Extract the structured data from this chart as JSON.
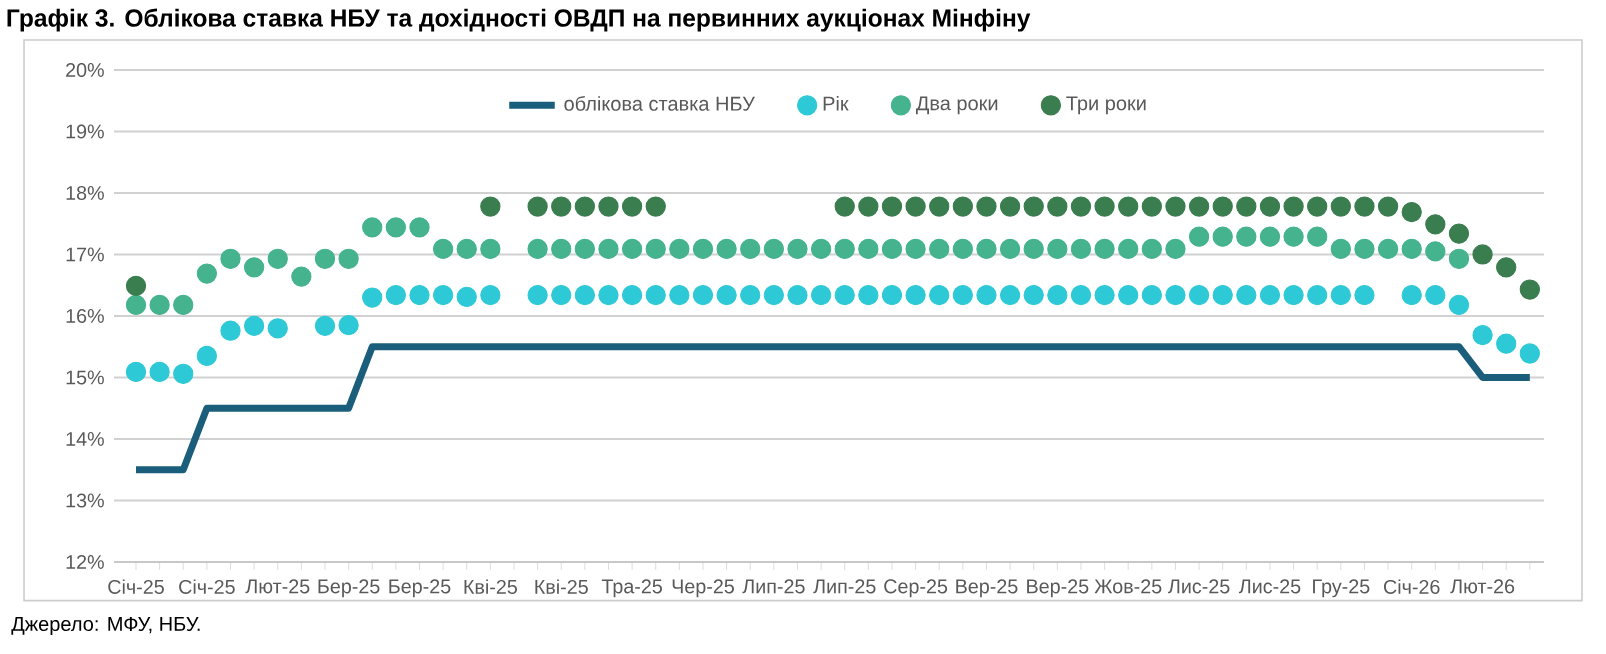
{
  "chart_data": {
    "type": "scatter",
    "title": "Графік 3. Облікова ставка НБУ та дохідності ОВДП на первинних аукціонах Мінфіну",
    "categories": [
      "Січ-25",
      null,
      null,
      "Січ-25",
      null,
      null,
      "Лют-25",
      null,
      null,
      "Бер-25",
      null,
      null,
      "Бер-25",
      null,
      null,
      "Кві-25",
      null,
      null,
      "Кві-25",
      null,
      null,
      "Тра-25",
      null,
      null,
      "Чер-25",
      null,
      null,
      "Лип-25",
      null,
      null,
      "Лип-25",
      null,
      null,
      "Сер-25",
      null,
      null,
      "Вер-25",
      null,
      null,
      "Вер-25",
      null,
      null,
      "Жов-25",
      null,
      null,
      "Лис-25",
      null,
      null,
      "Лис-25",
      null,
      null,
      "Гру-25",
      null,
      null,
      "Січ-26",
      null,
      null,
      "Лют-26",
      null,
      null
    ],
    "series": [
      {
        "name": "облікова ставка НБУ",
        "type": "line",
        "marker": "none",
        "color": "#1b5e7b",
        "values": [
          13.5,
          13.5,
          13.5,
          14.5,
          14.5,
          14.5,
          14.5,
          14.5,
          14.5,
          14.5,
          15.5,
          15.5,
          15.5,
          15.5,
          15.5,
          15.5,
          15.5,
          15.5,
          15.5,
          15.5,
          15.5,
          15.5,
          15.5,
          15.5,
          15.5,
          15.5,
          15.5,
          15.5,
          15.5,
          15.5,
          15.5,
          15.5,
          15.5,
          15.5,
          15.5,
          15.5,
          15.5,
          15.5,
          15.5,
          15.5,
          15.5,
          15.5,
          15.5,
          15.5,
          15.5,
          15.5,
          15.5,
          15.5,
          15.5,
          15.5,
          15.5,
          15.5,
          15.5,
          15.5,
          15.5,
          15.5,
          15.5,
          15.0,
          15.0,
          15.0
        ]
      },
      {
        "name": "Рік",
        "color": "#2ec9d6",
        "values": [
          15.09,
          15.09,
          15.06,
          15.35,
          15.76,
          15.84,
          15.8,
          null,
          15.84,
          15.85,
          16.3,
          16.34,
          16.34,
          16.34,
          16.31,
          16.34,
          null,
          16.34,
          16.34,
          16.34,
          16.34,
          16.34,
          16.34,
          16.34,
          16.34,
          16.34,
          16.34,
          16.34,
          16.34,
          16.34,
          16.34,
          16.34,
          16.34,
          16.34,
          16.34,
          16.34,
          16.34,
          16.34,
          16.34,
          16.34,
          16.34,
          16.34,
          16.34,
          16.34,
          16.34,
          16.34,
          16.34,
          16.34,
          16.34,
          16.34,
          16.34,
          16.34,
          16.34,
          null,
          16.34,
          16.34,
          16.18,
          15.69,
          15.55,
          15.39
        ]
      },
      {
        "name": "Два роки",
        "color": "#45b38e",
        "values": [
          16.18,
          16.18,
          16.18,
          16.69,
          16.93,
          16.79,
          16.93,
          16.64,
          16.93,
          16.93,
          17.44,
          17.44,
          17.44,
          17.09,
          17.09,
          17.09,
          null,
          17.09,
          17.09,
          17.09,
          17.09,
          17.09,
          17.09,
          17.09,
          17.09,
          17.09,
          17.09,
          17.09,
          17.09,
          17.09,
          17.09,
          17.09,
          17.09,
          17.09,
          17.09,
          17.09,
          17.09,
          17.09,
          17.09,
          17.09,
          17.09,
          17.09,
          17.09,
          17.09,
          17.09,
          17.29,
          17.29,
          17.29,
          17.29,
          17.29,
          17.29,
          17.09,
          17.09,
          17.09,
          17.09,
          17.05,
          16.93,
          null,
          null,
          null
        ]
      },
      {
        "name": "Три роки",
        "color": "#3a7d4f",
        "values": [
          16.49,
          null,
          null,
          null,
          null,
          null,
          null,
          null,
          null,
          null,
          null,
          null,
          null,
          null,
          null,
          17.78,
          null,
          17.78,
          17.78,
          17.78,
          17.78,
          17.78,
          17.78,
          null,
          null,
          null,
          null,
          null,
          null,
          null,
          17.78,
          17.78,
          17.78,
          17.78,
          17.78,
          17.78,
          17.78,
          17.78,
          17.78,
          17.78,
          17.78,
          17.78,
          17.78,
          17.78,
          17.78,
          17.78,
          17.78,
          17.78,
          17.78,
          17.78,
          17.78,
          17.78,
          17.78,
          17.78,
          17.69,
          17.49,
          17.34,
          17.0,
          16.79,
          16.43
        ]
      }
    ],
    "ylim": [
      12,
      20
    ],
    "yticks": [
      {
        "value": 12,
        "label": "12%"
      },
      {
        "value": 13,
        "label": "13%"
      },
      {
        "value": 14,
        "label": "14%"
      },
      {
        "value": 15,
        "label": "15%"
      },
      {
        "value": 16,
        "label": "16%"
      },
      {
        "value": 17,
        "label": "17%"
      },
      {
        "value": 18,
        "label": "18%"
      },
      {
        "value": 19,
        "label": "19%"
      },
      {
        "value": 20,
        "label": "20%"
      }
    ],
    "grid": "y",
    "legend": "top",
    "marker": "circle",
    "annotations": [
      "Джерело: МФУ, НБУ."
    ]
  }
}
